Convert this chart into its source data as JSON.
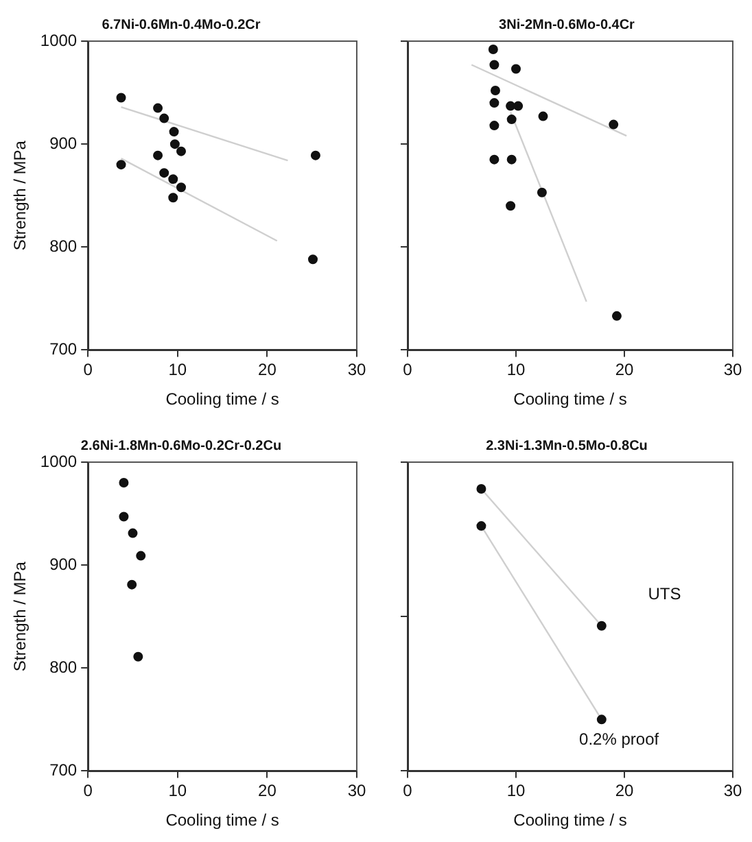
{
  "chart_data": [
    {
      "type": "scatter",
      "title": "6.7Ni-0.6Mn-0.4Mo-0.2Cr",
      "xlabel": "Cooling time / s",
      "ylabel": "Strength / MPa",
      "xlim": [
        0,
        30
      ],
      "xticks": [
        0,
        10,
        20,
        30
      ],
      "ylim": [
        700,
        1000
      ],
      "yticks": [
        700,
        800,
        900,
        1000
      ],
      "grid": false,
      "legend": false,
      "marker": "circle",
      "series": [
        {
          "color": "#111111",
          "x": [
            3.7,
            7.8,
            8.5,
            9.6,
            9.7,
            10.4,
            25.4
          ],
          "values": [
            945,
            935,
            925,
            912,
            900,
            893,
            889
          ]
        },
        {
          "color": "#111111",
          "x": [
            3.7,
            7.8,
            8.5,
            9.5,
            10.4,
            9.5,
            25.1
          ],
          "values": [
            880,
            889,
            872,
            866,
            858,
            848,
            788
          ]
        },
        {
          "type": "line",
          "marker": "none",
          "color": "#cfcfcf",
          "x": [
            3.7,
            22.3
          ],
          "values": [
            936,
            884
          ]
        },
        {
          "type": "line",
          "marker": "none",
          "color": "#cfcfcf",
          "x": [
            3.7,
            21.1
          ],
          "values": [
            886,
            806
          ]
        }
      ]
    },
    {
      "type": "scatter",
      "title": "3Ni-2Mn-0.6Mo-0.4Cr",
      "xlabel": "Cooling time / s",
      "xlim": [
        0,
        30
      ],
      "xticks": [
        0,
        10,
        20,
        30
      ],
      "ylim": [
        700,
        1000
      ],
      "yticks": [
        700,
        800,
        900,
        1000
      ],
      "tick_labels": "x",
      "grid": false,
      "legend": false,
      "marker": "circle",
      "series": [
        {
          "color": "#111111",
          "x": [
            7.9,
            8.0,
            10.0,
            8.1,
            8.0,
            9.5,
            10.2,
            9.6,
            12.5,
            19.0
          ],
          "values": [
            992,
            977,
            973,
            952,
            940,
            937,
            937,
            924,
            927,
            919
          ]
        },
        {
          "color": "#111111",
          "x": [
            8.0,
            8.0,
            9.6,
            12.4,
            9.5,
            19.3
          ],
          "values": [
            918,
            885,
            885,
            853,
            840,
            733
          ]
        },
        {
          "type": "line",
          "marker": "none",
          "color": "#cfcfcf",
          "x": [
            5.9,
            20.2
          ],
          "values": [
            977,
            908
          ]
        },
        {
          "type": "line",
          "marker": "none",
          "color": "#cfcfcf",
          "x": [
            9.5,
            16.5
          ],
          "values": [
            931,
            747
          ]
        }
      ]
    },
    {
      "type": "scatter",
      "title": "2.6Ni-1.8Mn-0.6Mo-0.2Cr-0.2Cu",
      "xlabel": "Cooling time / s",
      "ylabel": "Strength / MPa",
      "xlim": [
        0,
        30
      ],
      "xticks": [
        0,
        10,
        20,
        30
      ],
      "ylim": [
        700,
        1000
      ],
      "yticks": [
        700,
        800,
        900,
        1000
      ],
      "grid": false,
      "legend": false,
      "marker": "circle",
      "series": [
        {
          "color": "#111111",
          "x": [
            4.0,
            5.0,
            5.9
          ],
          "values": [
            980,
            931,
            909
          ]
        },
        {
          "color": "#111111",
          "x": [
            4.0,
            4.9,
            5.6
          ],
          "values": [
            947,
            881,
            811
          ]
        }
      ]
    },
    {
      "type": "scatter",
      "title": "2.3Ni-1.3Mn-0.5Mo-0.8Cu",
      "xlabel": "Cooling time / s",
      "xlim": [
        0,
        30
      ],
      "xticks": [
        0,
        10,
        20,
        30
      ],
      "ylim": [
        700,
        1000
      ],
      "yticks": [
        {
          "value": 700,
          "label": null
        },
        {
          "value": 850,
          "label": null
        },
        {
          "value": 1000,
          "label": null
        }
      ],
      "tick_labels": "x",
      "grid": false,
      "legend": false,
      "marker": "circle",
      "annotations": [
        "UTS",
        "0.2% proof"
      ],
      "series": [
        {
          "color": "#111111",
          "x": [
            6.8,
            17.9
          ],
          "values": [
            974,
            841
          ]
        },
        {
          "color": "#111111",
          "x": [
            6.8,
            17.9
          ],
          "values": [
            938,
            750
          ]
        },
        {
          "type": "line",
          "marker": "none",
          "color": "#cfcfcf",
          "x": [
            6.8,
            17.9
          ],
          "values": [
            974,
            841
          ]
        },
        {
          "type": "line",
          "marker": "none",
          "color": "#cfcfcf",
          "x": [
            6.8,
            17.9
          ],
          "values": [
            938,
            750
          ]
        }
      ]
    }
  ]
}
